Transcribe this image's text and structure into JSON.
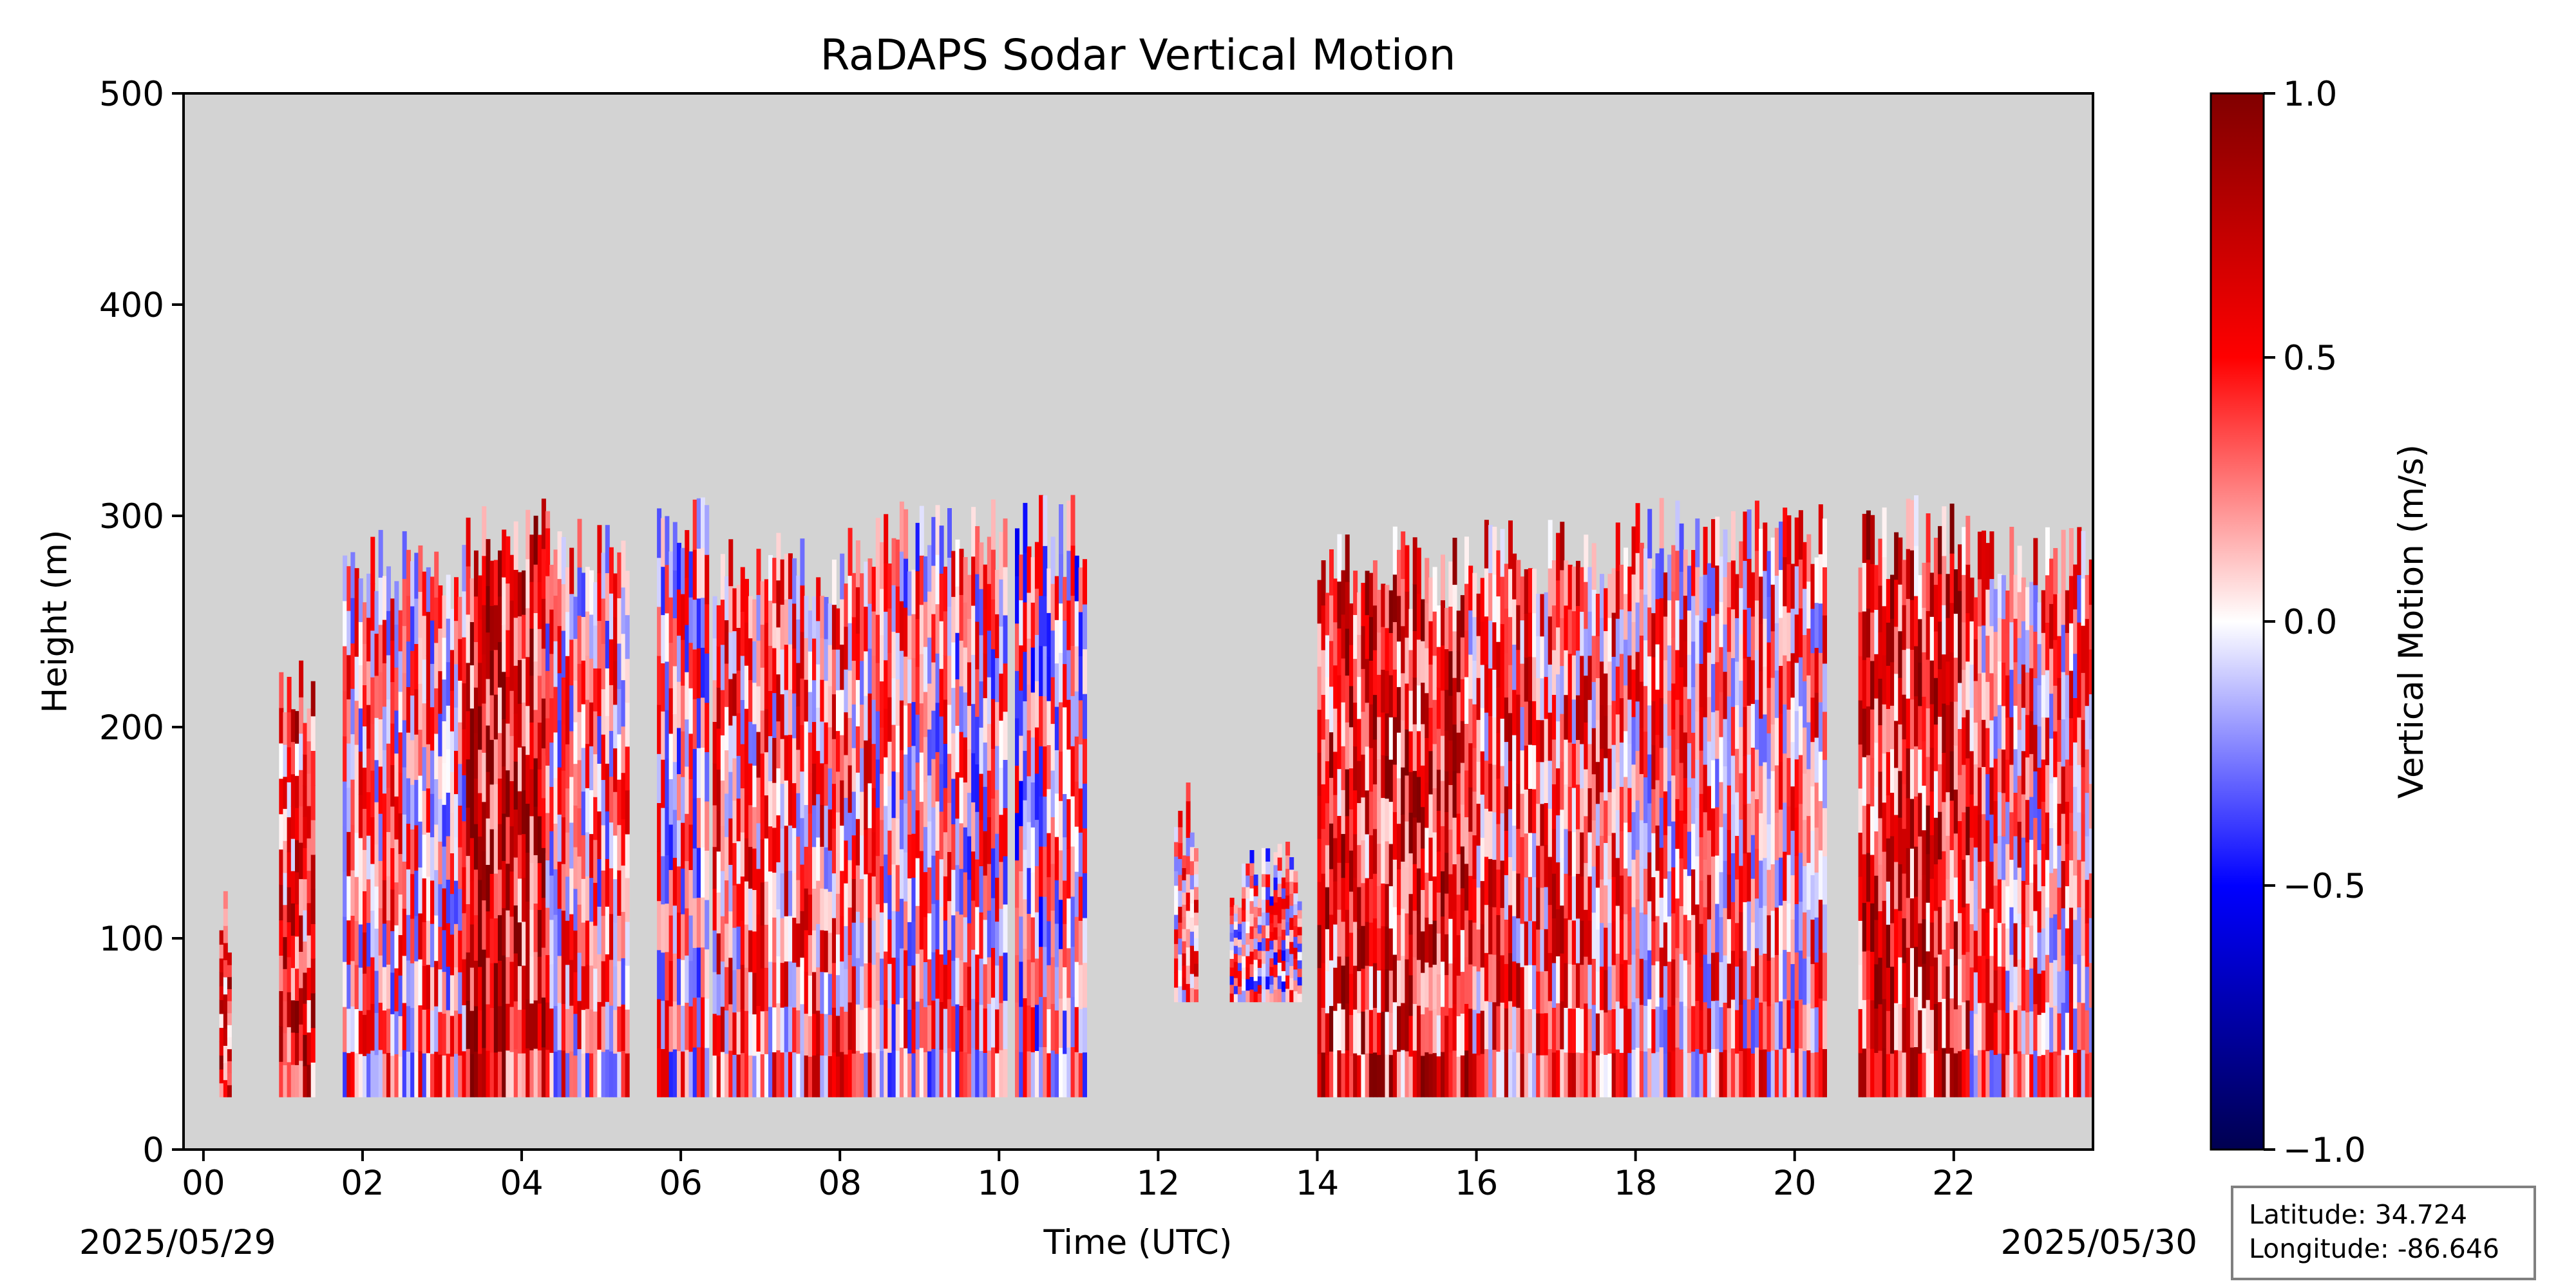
{
  "chart_data": {
    "type": "heatmap",
    "title": "RaDAPS Sodar Vertical Motion",
    "xlabel": "Time (UTC)",
    "ylabel": "Height (m)",
    "xlim": [
      -0.25,
      23.75
    ],
    "ylim": [
      0,
      500
    ],
    "x_ticks": [
      "00",
      "02",
      "04",
      "06",
      "08",
      "10",
      "12",
      "14",
      "16",
      "18",
      "20",
      "22"
    ],
    "y_ticks": [
      "0",
      "100",
      "200",
      "300",
      "400",
      "500"
    ],
    "start_date": "2025/05/29",
    "end_date": "2025/05/30",
    "colorbar": {
      "label": "Vertical Motion (m/s)",
      "range": [
        -1.0,
        1.0
      ],
      "ticks": [
        "1.0",
        "0.5",
        "0.0",
        "−0.5",
        "−1.0"
      ],
      "colormap": "seismic"
    },
    "no_data_color": "#d3d3d3",
    "segments": [
      {
        "t0": 0.2,
        "t1": 0.35,
        "top": 130,
        "bottom": 25,
        "mean": 0.4
      },
      {
        "t0": 0.95,
        "t1": 1.4,
        "top": 235,
        "bottom": 25,
        "mean": 0.45
      },
      {
        "t0": 1.75,
        "t1": 3.3,
        "top": 295,
        "bottom": 25,
        "mean": 0.15
      },
      {
        "t0": 3.3,
        "t1": 4.3,
        "top": 310,
        "bottom": 25,
        "mean": 0.6
      },
      {
        "t0": 4.3,
        "t1": 5.3,
        "top": 300,
        "bottom": 25,
        "mean": 0.15
      },
      {
        "t0": 5.7,
        "t1": 6.3,
        "top": 310,
        "bottom": 25,
        "mean": 0.1
      },
      {
        "t0": 6.4,
        "t1": 8.4,
        "top": 295,
        "bottom": 25,
        "mean": 0.25
      },
      {
        "t0": 8.4,
        "t1": 10.1,
        "top": 310,
        "bottom": 25,
        "mean": 0.1
      },
      {
        "t0": 10.2,
        "t1": 11.1,
        "top": 310,
        "bottom": 25,
        "mean": 0.0
      },
      {
        "t0": 12.2,
        "t1": 12.5,
        "top": 175,
        "bottom": 70,
        "mean": 0.2
      },
      {
        "t0": 12.9,
        "t1": 13.8,
        "top": 150,
        "bottom": 70,
        "mean": 0.05
      },
      {
        "t0": 14.0,
        "t1": 15.9,
        "top": 295,
        "bottom": 25,
        "mean": 0.5
      },
      {
        "t0": 15.9,
        "t1": 17.9,
        "top": 300,
        "bottom": 25,
        "mean": 0.3
      },
      {
        "t0": 17.9,
        "t1": 20.4,
        "top": 310,
        "bottom": 25,
        "mean": 0.2
      },
      {
        "t0": 20.8,
        "t1": 22.2,
        "top": 310,
        "bottom": 25,
        "mean": 0.5
      },
      {
        "t0": 22.2,
        "t1": 23.75,
        "top": 295,
        "bottom": 25,
        "mean": 0.2
      }
    ],
    "annotation": {
      "latitude": "Latitude: 34.724",
      "longitude": "Longitude: -86.646"
    }
  }
}
